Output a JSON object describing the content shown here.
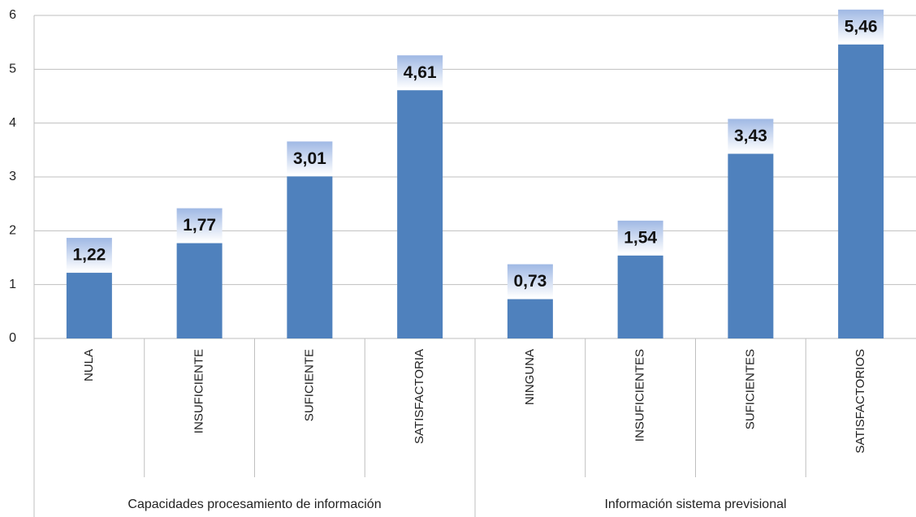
{
  "chart_data": {
    "type": "bar",
    "categories": [
      "NULA",
      "INSUFICIENTE",
      "SUFICIENTE",
      "SATISFACTORIA",
      "NINGUNA",
      "INSUFICIENTES",
      "SUFICIENTES",
      "SATISFACTORIOS"
    ],
    "values": [
      1.22,
      1.77,
      3.01,
      4.61,
      0.73,
      1.54,
      3.43,
      5.46
    ],
    "value_labels": [
      "1,22",
      "1,77",
      "3,01",
      "4,61",
      "0,73",
      "1,54",
      "3,43",
      "5,46"
    ],
    "groups": [
      "Capacidades procesamiento de información",
      "Información sistema previsional"
    ],
    "color": "#4f81bd",
    "ylim": [
      0,
      6
    ],
    "yticks": [
      0,
      1,
      2,
      3,
      4,
      5,
      6
    ],
    "grid": true
  }
}
